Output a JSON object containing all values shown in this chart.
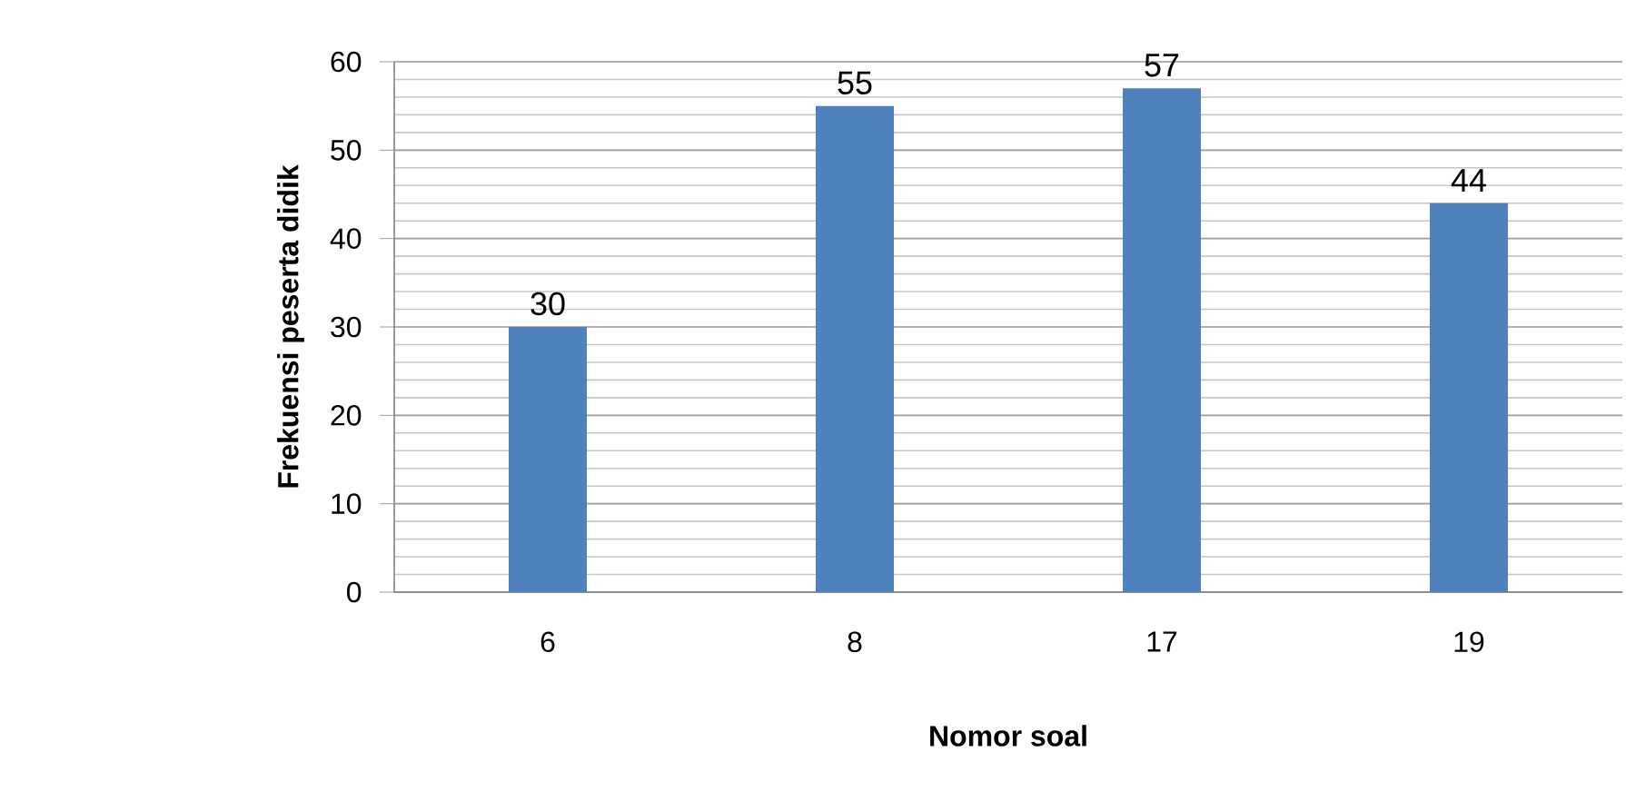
{
  "chart_data": {
    "type": "bar",
    "xlabel": "Nomor soal",
    "ylabel": "Frekuensi peserta didik",
    "categories": [
      "6",
      "8",
      "17",
      "19"
    ],
    "values": [
      30,
      55,
      57,
      44
    ],
    "color": "#4f81bd",
    "ylim": [
      0,
      60
    ],
    "yticks": [
      0,
      10,
      20,
      30,
      40,
      50,
      60
    ],
    "grid": "y",
    "data_labels": true
  }
}
